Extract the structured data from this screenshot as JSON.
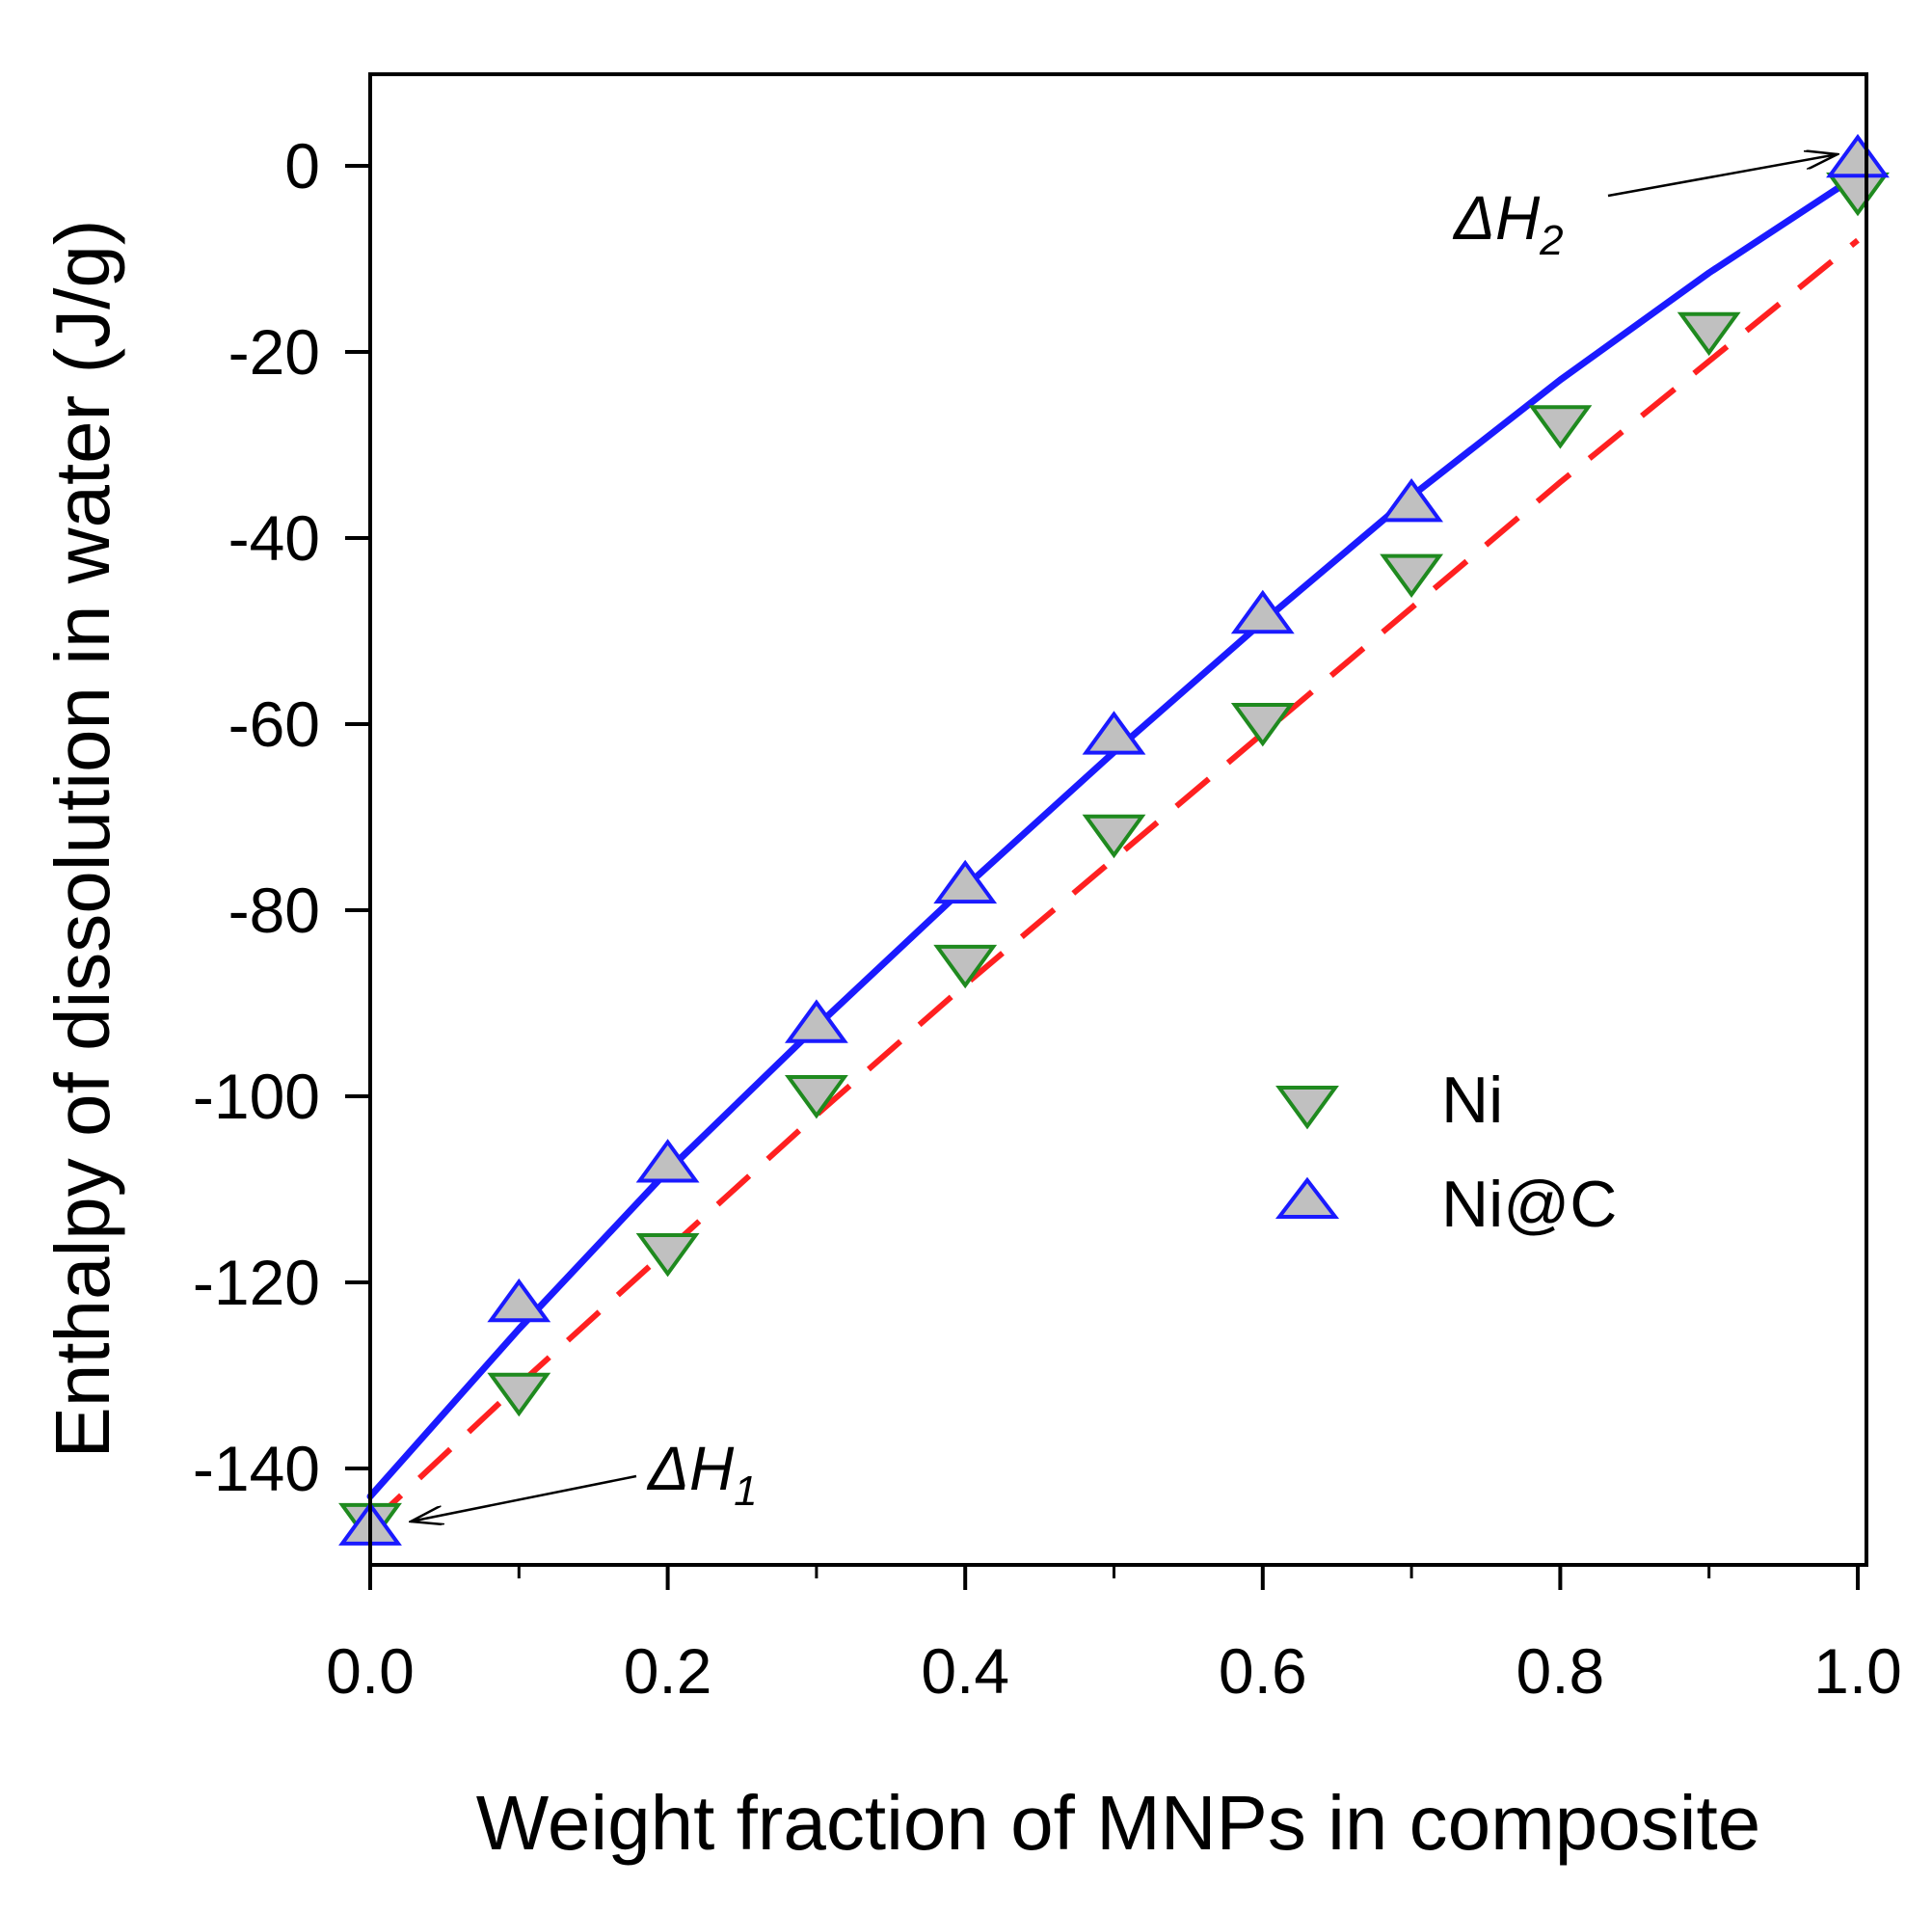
{
  "chart_data": {
    "type": "scatter",
    "title": "",
    "xlabel": "Weight fraction of MNPs in composite",
    "ylabel": "Enthalpy of dissolution in water (J/g)",
    "xlim": [
      0.0,
      1.0
    ],
    "ylim": [
      -150,
      10
    ],
    "x_ticks": [
      0.0,
      0.2,
      0.4,
      0.6,
      0.8,
      1.0
    ],
    "x_tick_labels": [
      "0.0",
      "0.2",
      "0.4",
      "0.6",
      "0.8",
      "1.0"
    ],
    "y_ticks": [
      0,
      -20,
      -40,
      -60,
      -80,
      -100,
      -120,
      -140
    ],
    "y_tick_labels": [
      "0",
      "-20",
      "-40",
      "-60",
      "-80",
      "-100",
      "-120",
      "-140"
    ],
    "grid": false,
    "legend_position": "right-center",
    "series": [
      {
        "name": "Ni",
        "marker": "triangle-down",
        "marker_edge_color": "#1f8a1f",
        "marker_fill_color": "#c0c0c0",
        "x": [
          0.0,
          0.1,
          0.2,
          0.3,
          0.4,
          0.5,
          0.6,
          0.7,
          0.8,
          0.9,
          1.0
        ],
        "y": [
          -146,
          -132,
          -117,
          -100,
          -86,
          -72,
          -60,
          -44,
          -28,
          -18,
          -3
        ],
        "fit": {
          "style": "dashed",
          "color": "#ff2020",
          "x": [
            0.0,
            0.1,
            0.2,
            0.3,
            0.4,
            0.5,
            0.6,
            0.7,
            0.8,
            0.9,
            1.0
          ],
          "y": [
            -146,
            -131,
            -116.5,
            -102,
            -88,
            -74.5,
            -61,
            -47.5,
            -34,
            -21,
            -8
          ]
        }
      },
      {
        "name": "Ni@C",
        "marker": "triangle-up",
        "marker_edge_color": "#1a1aff",
        "marker_fill_color": "#c0c0c0",
        "x": [
          0.0,
          0.1,
          0.2,
          0.3,
          0.4,
          0.5,
          0.6,
          0.7,
          1.0
        ],
        "y": [
          -146,
          -122,
          -107,
          -92,
          -77,
          -61,
          -48,
          -36,
          1
        ],
        "fit": {
          "style": "solid",
          "color": "#1a1aff",
          "x": [
            0.0,
            0.1,
            0.2,
            0.3,
            0.4,
            0.5,
            0.6,
            0.7,
            0.8,
            0.9,
            1.0
          ],
          "y": [
            -143,
            -125,
            -108,
            -92.5,
            -77.5,
            -63,
            -49,
            -35.5,
            -23,
            -11.5,
            -1
          ]
        }
      }
    ],
    "annotations": [
      {
        "label": "ΔH",
        "subscript": "1",
        "points_to": [
          0.0,
          -146
        ]
      },
      {
        "label": "ΔH",
        "subscript": "2",
        "points_to": [
          1.0,
          1
        ]
      }
    ]
  }
}
